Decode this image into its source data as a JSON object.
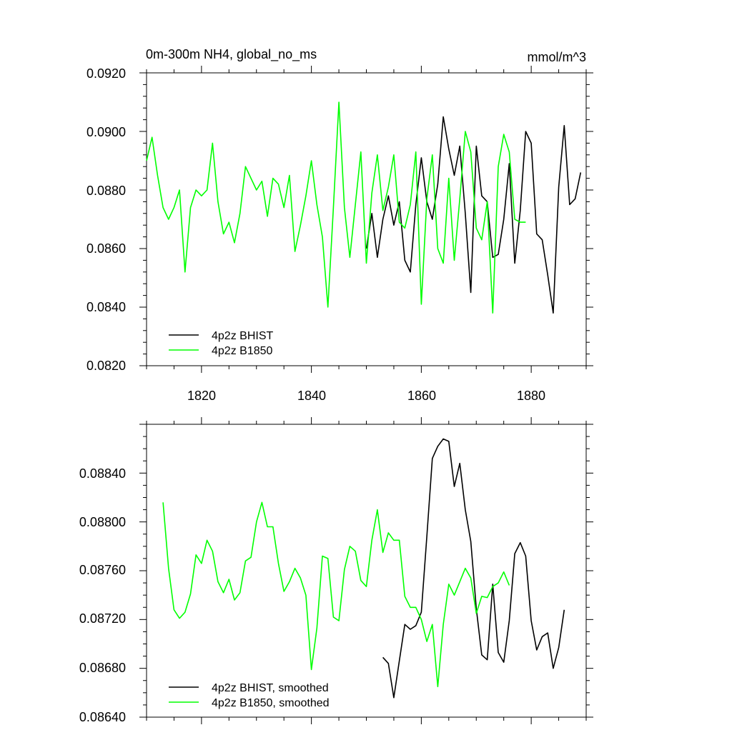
{
  "chart_data": [
    {
      "type": "line",
      "title": "0m-300m NH4, global_no_ms",
      "units": "mmol/m^3",
      "xlim": [
        1810,
        1890
      ],
      "ylim": [
        0.082,
        0.092
      ],
      "x_ticks": [
        1820,
        1840,
        1860,
        1880
      ],
      "y_ticks": [
        "0.0820",
        "0.0840",
        "0.0860",
        "0.0880",
        "0.0900",
        "0.0920"
      ],
      "legend_position": "bottom-left",
      "series": [
        {
          "name": "4p2z BHIST",
          "color": "#000000",
          "x": [
            1850,
            1851,
            1852,
            1853,
            1854,
            1855,
            1856,
            1857,
            1858,
            1859,
            1860,
            1861,
            1862,
            1863,
            1864,
            1865,
            1866,
            1867,
            1868,
            1869,
            1870,
            1871,
            1872,
            1873,
            1874,
            1875,
            1876,
            1877,
            1878,
            1879,
            1880,
            1881,
            1882,
            1883,
            1884,
            1885,
            1886,
            1887,
            1888,
            1889
          ],
          "y": [
            0.086,
            0.0872,
            0.0857,
            0.087,
            0.0878,
            0.0868,
            0.0876,
            0.0856,
            0.0852,
            0.0875,
            0.0891,
            0.0876,
            0.087,
            0.0882,
            0.0905,
            0.0894,
            0.0885,
            0.0895,
            0.0872,
            0.0845,
            0.0895,
            0.0878,
            0.0876,
            0.0857,
            0.0858,
            0.087,
            0.0889,
            0.0855,
            0.0873,
            0.09,
            0.0896,
            0.0865,
            0.0863,
            0.0851,
            0.0838,
            0.0881,
            0.0902,
            0.0875,
            0.0877,
            0.0886
          ]
        },
        {
          "name": "4p2z B1850",
          "color": "#00ff00",
          "x": [
            1810,
            1811,
            1812,
            1813,
            1814,
            1815,
            1816,
            1817,
            1818,
            1819,
            1820,
            1821,
            1822,
            1823,
            1824,
            1825,
            1826,
            1827,
            1828,
            1829,
            1830,
            1831,
            1832,
            1833,
            1834,
            1835,
            1836,
            1837,
            1838,
            1839,
            1840,
            1841,
            1842,
            1843,
            1844,
            1845,
            1846,
            1847,
            1848,
            1849,
            1850,
            1851,
            1852,
            1853,
            1854,
            1855,
            1856,
            1857,
            1858,
            1859,
            1860,
            1861,
            1862,
            1863,
            1864,
            1865,
            1866,
            1867,
            1868,
            1869,
            1870,
            1871,
            1872,
            1873,
            1874,
            1875,
            1876,
            1877,
            1878,
            1879
          ],
          "y": [
            0.089,
            0.0898,
            0.0885,
            0.0874,
            0.087,
            0.0874,
            0.088,
            0.0852,
            0.0874,
            0.088,
            0.0878,
            0.088,
            0.0896,
            0.0876,
            0.0865,
            0.0869,
            0.0862,
            0.0872,
            0.0888,
            0.0884,
            0.088,
            0.0883,
            0.0871,
            0.0884,
            0.0882,
            0.0874,
            0.0885,
            0.0859,
            0.0868,
            0.0878,
            0.089,
            0.0875,
            0.0864,
            0.084,
            0.0874,
            0.091,
            0.0874,
            0.0857,
            0.0875,
            0.0893,
            0.0855,
            0.0879,
            0.0892,
            0.0873,
            0.0881,
            0.0892,
            0.0869,
            0.0867,
            0.0875,
            0.0893,
            0.0841,
            0.0877,
            0.0892,
            0.086,
            0.0855,
            0.0884,
            0.0856,
            0.0877,
            0.09,
            0.0893,
            0.0867,
            0.0863,
            0.0876,
            0.0838,
            0.0888,
            0.0899,
            0.0893,
            0.087,
            0.0869,
            0.0869
          ]
        }
      ]
    },
    {
      "type": "line",
      "xlim": [
        1810,
        1890
      ],
      "ylim": [
        0.0864,
        0.0888
      ],
      "x_ticks": [
        1820,
        1840,
        1860,
        1880
      ],
      "y_ticks": [
        "0.08640",
        "0.08680",
        "0.08720",
        "0.08760",
        "0.08800",
        "0.08840"
      ],
      "legend_position": "bottom-left",
      "series": [
        {
          "name": "4p2z BHIST, smoothed",
          "color": "#000000",
          "x": [
            1853,
            1854,
            1855,
            1856,
            1857,
            1858,
            1859,
            1860,
            1861,
            1862,
            1863,
            1864,
            1865,
            1866,
            1867,
            1868,
            1869,
            1870,
            1871,
            1872,
            1873,
            1874,
            1875,
            1876,
            1877,
            1878,
            1879,
            1880,
            1881,
            1882,
            1883,
            1884,
            1885,
            1886
          ],
          "y": [
            0.08689,
            0.08684,
            0.08656,
            0.08686,
            0.08716,
            0.08712,
            0.08715,
            0.08726,
            0.08788,
            0.08852,
            0.08862,
            0.08868,
            0.08866,
            0.08829,
            0.08848,
            0.0881,
            0.08784,
            0.08729,
            0.08691,
            0.08687,
            0.08749,
            0.08693,
            0.08685,
            0.08719,
            0.08774,
            0.08783,
            0.08772,
            0.08719,
            0.08695,
            0.08706,
            0.08709,
            0.0868,
            0.08697,
            0.08728
          ]
        },
        {
          "name": "4p2z B1850, smoothed",
          "color": "#00ff00",
          "x": [
            1813,
            1814,
            1815,
            1816,
            1817,
            1818,
            1819,
            1820,
            1821,
            1822,
            1823,
            1824,
            1825,
            1826,
            1827,
            1828,
            1829,
            1830,
            1831,
            1832,
            1833,
            1834,
            1835,
            1836,
            1837,
            1838,
            1839,
            1840,
            1841,
            1842,
            1843,
            1844,
            1845,
            1846,
            1847,
            1848,
            1849,
            1850,
            1851,
            1852,
            1853,
            1854,
            1855,
            1856,
            1857,
            1858,
            1859,
            1860,
            1861,
            1862,
            1863,
            1864,
            1865,
            1866,
            1867,
            1868,
            1869,
            1870,
            1871,
            1872,
            1873,
            1874,
            1875,
            1876
          ],
          "y": [
            0.08816,
            0.08762,
            0.08728,
            0.08721,
            0.08726,
            0.08741,
            0.08773,
            0.08766,
            0.08785,
            0.08776,
            0.08751,
            0.08742,
            0.08753,
            0.08736,
            0.08742,
            0.08768,
            0.08771,
            0.088,
            0.08816,
            0.08796,
            0.08796,
            0.08766,
            0.08743,
            0.08751,
            0.08762,
            0.08754,
            0.0874,
            0.08679,
            0.08713,
            0.08772,
            0.0877,
            0.08722,
            0.08719,
            0.08761,
            0.0878,
            0.08776,
            0.08752,
            0.08747,
            0.08785,
            0.0881,
            0.08775,
            0.08791,
            0.08785,
            0.08785,
            0.08739,
            0.0873,
            0.0873,
            0.0872,
            0.08702,
            0.08716,
            0.08665,
            0.08716,
            0.08749,
            0.0874,
            0.08751,
            0.08762,
            0.08754,
            0.08725,
            0.08739,
            0.08738,
            0.08747,
            0.0875,
            0.08759,
            0.08748
          ]
        }
      ]
    }
  ]
}
